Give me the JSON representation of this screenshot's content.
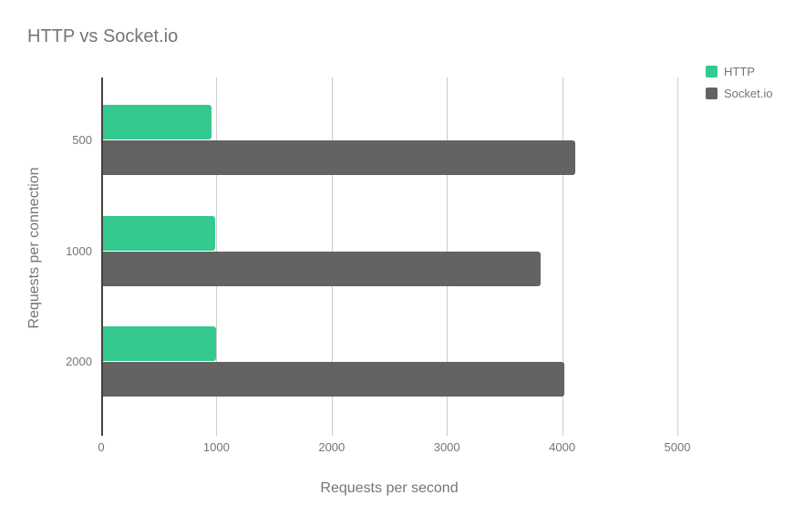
{
  "title": "HTTP vs Socket.io",
  "colors": {
    "http_green": "#34c98e",
    "socketio_gray": "#636363",
    "gridline": "#cccccc",
    "axis_line": "#424242",
    "text_gray": "#757575",
    "background": "#ffffff"
  },
  "chart_data": {
    "type": "bar",
    "orientation": "horizontal",
    "title": "HTTP vs Socket.io",
    "xlabel": "Requests per second",
    "ylabel": "Requests per connection",
    "categories": [
      "500",
      "1000",
      "2000"
    ],
    "series": [
      {
        "name": "HTTP",
        "color": "#34c98e",
        "values": [
          940,
          970,
          980
        ]
      },
      {
        "name": "Socket.io",
        "color": "#636363",
        "values": [
          4100,
          3800,
          4000
        ]
      }
    ],
    "xlim": [
      0,
      5000
    ],
    "xticks": [
      0,
      1000,
      2000,
      3000,
      4000,
      5000
    ],
    "xtick_labels": [
      "0",
      "1000",
      "2000",
      "3000",
      "4000",
      "5000"
    ],
    "grid": true,
    "legend_position": "right"
  }
}
